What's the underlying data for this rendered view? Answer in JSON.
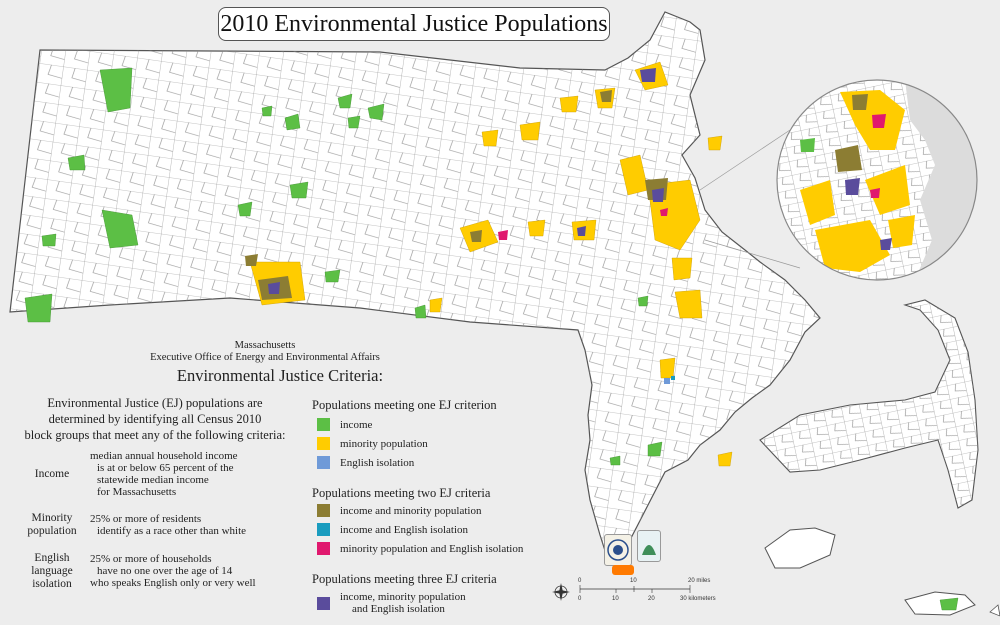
{
  "title": "2010 Environmental Justice Populations",
  "agency": {
    "line1": "Massachusetts",
    "line2": "Executive Office of Energy and Environmental Affairs"
  },
  "criteria_heading": "Environmental Justice Criteria:",
  "intro": {
    "line1": "Environmental Justice (EJ) populations are",
    "line2": "determined by identifying all Census 2010",
    "line3": "block groups that meet any of the following criteria:"
  },
  "criteria": [
    {
      "label": "Income",
      "lines": [
        "median annual household income",
        "is at or below 65 percent of the",
        "statewide median income",
        "for Massachusetts"
      ]
    },
    {
      "label_lines": [
        "Minority",
        "population"
      ],
      "lines": [
        "25% or more of residents",
        "identify as a race other than white"
      ]
    },
    {
      "label_lines": [
        "English",
        "language",
        "isolation"
      ],
      "lines": [
        "25% or more of households",
        "have no one over the age of 14",
        "who speaks English only or very well"
      ]
    }
  ],
  "legend": {
    "one": {
      "title": "Populations meeting one EJ criterion",
      "items": [
        {
          "label": "income",
          "color": "#5cbf45"
        },
        {
          "label": "minority population",
          "color": "#ffcc00"
        },
        {
          "label": "English isolation",
          "color": "#6f9ad8"
        }
      ]
    },
    "two": {
      "title": "Populations meeting two EJ criteria",
      "items": [
        {
          "label": "income and minority population",
          "color": "#8c7d33"
        },
        {
          "label": "income and English isolation",
          "color": "#1a9cbf"
        },
        {
          "label": "minority population and English isolation",
          "color": "#e0186e"
        }
      ]
    },
    "three": {
      "title": "Populations meeting three EJ criteria",
      "items": [
        {
          "label_line1": "income, minority population",
          "label_line2": "and English isolation",
          "color": "#5a4c9c"
        }
      ]
    }
  },
  "scale": {
    "miles_label": "20 miles",
    "miles_ticks": [
      "0",
      "10",
      "20"
    ],
    "km_ticks": [
      "0",
      "10",
      "20",
      "30 kilometers"
    ]
  },
  "colors": {
    "land": "#ffffff",
    "water": "#dcdcdc",
    "background": "#ededed",
    "town_boundary": "#7a7a7a"
  },
  "icons": [
    "compass-rose-icon",
    "massachusetts-seal-logo",
    "agency-logo",
    "commonwealth-logo"
  ]
}
